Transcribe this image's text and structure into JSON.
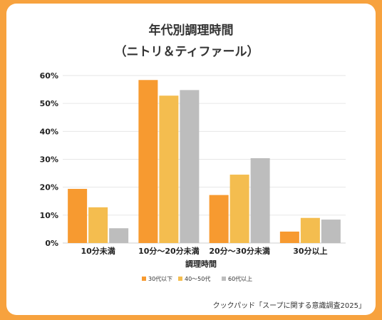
{
  "title_line1": "年代別調理時間",
  "title_line2": "（ニトリ＆ティファール）",
  "source": "クックパッド「スープに関する意識調査2025」",
  "chart_data": {
    "type": "bar",
    "categories": [
      "10分未満",
      "10分〜20分未満",
      "20分〜30分未満",
      "30分以上"
    ],
    "series": [
      {
        "name": "30代以下",
        "color": "#f79a30",
        "values": [
          19.4,
          58.4,
          17.2,
          4.1
        ]
      },
      {
        "name": "40〜50代",
        "color": "#f4bd4f",
        "values": [
          12.8,
          52.8,
          24.5,
          9.0
        ]
      },
      {
        "name": "60代以上",
        "color": "#bdbdbd",
        "values": [
          5.3,
          54.8,
          30.4,
          8.4
        ]
      }
    ],
    "xlabel": "調理時間",
    "ylabel": "",
    "ylim": [
      0,
      60
    ],
    "yticks": [
      "0%",
      "10%",
      "20%",
      "30%",
      "40%",
      "50%",
      "60%"
    ],
    "grid": true,
    "legend_position": "bottom"
  }
}
